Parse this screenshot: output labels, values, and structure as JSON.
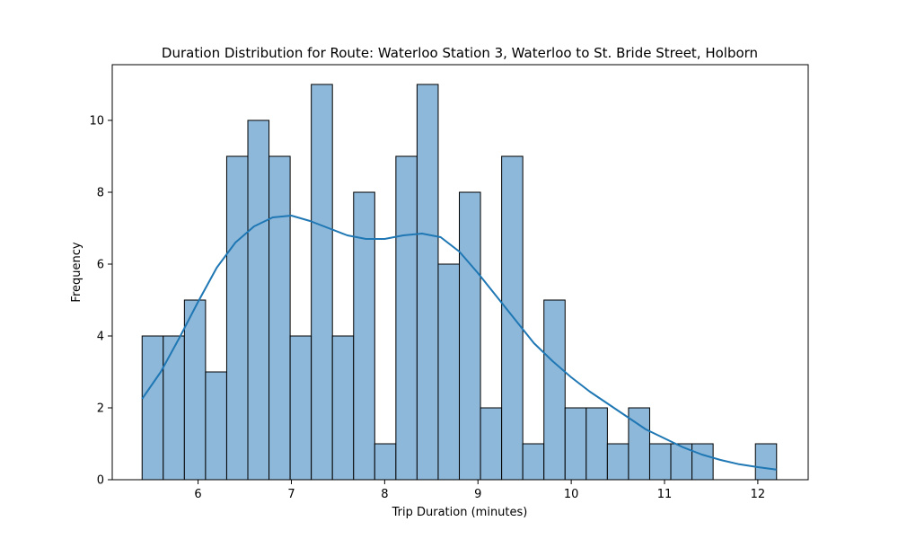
{
  "chart_data": {
    "type": "bar",
    "title": "Duration Distribution for Route: Waterloo Station 3, Waterloo to St. Bride Street, Holborn",
    "xlabel": "Trip Duration (minutes)",
    "ylabel": "Frequency",
    "xlim": [
      5.08,
      12.54
    ],
    "ylim": [
      0,
      11.55
    ],
    "xticks": [
      6,
      7,
      8,
      9,
      10,
      11,
      12
    ],
    "yticks": [
      0,
      2,
      4,
      6,
      8,
      10
    ],
    "grid": false,
    "bins": {
      "start": 5.4,
      "bin_width": 0.2267,
      "counts": [
        4,
        4,
        5,
        3,
        9,
        10,
        9,
        4,
        11,
        4,
        8,
        1,
        9,
        11,
        6,
        8,
        2,
        9,
        1,
        5,
        2,
        2,
        1,
        2,
        1,
        1,
        1,
        0,
        0,
        1
      ]
    },
    "kde": {
      "x": [
        5.4,
        5.6,
        5.8,
        6.0,
        6.2,
        6.4,
        6.6,
        6.8,
        7.0,
        7.2,
        7.4,
        7.6,
        7.8,
        8.0,
        8.2,
        8.4,
        8.6,
        8.8,
        9.0,
        9.2,
        9.4,
        9.6,
        9.8,
        10.0,
        10.2,
        10.4,
        10.6,
        10.8,
        11.0,
        11.2,
        11.4,
        11.6,
        11.8,
        12.0,
        12.2
      ],
      "y": [
        2.25,
        3.0,
        3.95,
        4.95,
        5.9,
        6.6,
        7.05,
        7.3,
        7.35,
        7.2,
        7.0,
        6.8,
        6.7,
        6.7,
        6.8,
        6.85,
        6.75,
        6.35,
        5.75,
        5.1,
        4.45,
        3.8,
        3.3,
        2.85,
        2.45,
        2.1,
        1.75,
        1.4,
        1.15,
        0.9,
        0.7,
        0.55,
        0.43,
        0.35,
        0.28
      ]
    },
    "colors": {
      "bar_fill": "#8db8da",
      "bar_edge": "#000000",
      "kde_line": "#1f77b4"
    }
  }
}
